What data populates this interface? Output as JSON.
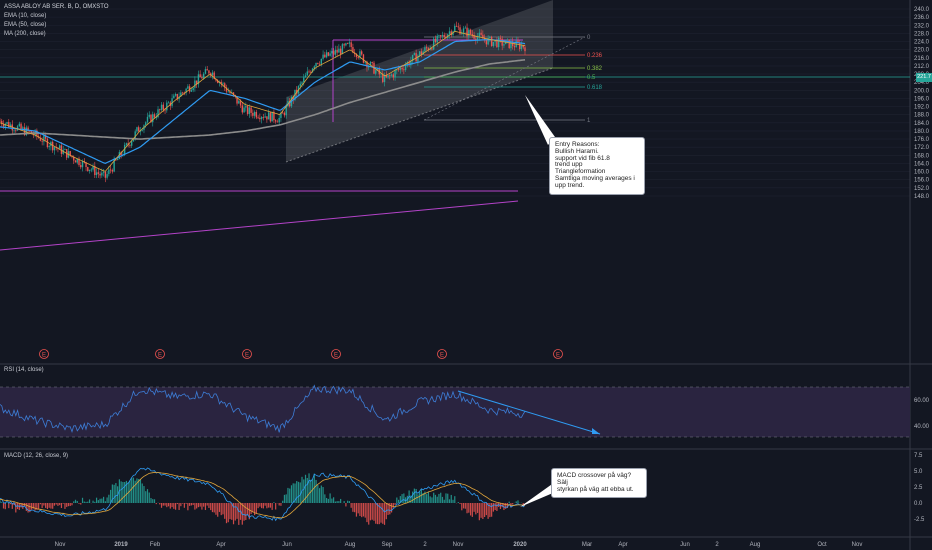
{
  "chart_title": "ASSA ABLOY AB SER. B, D, OMXSTO",
  "legend": [
    "EMA (10, close)",
    "EMA (50, close)",
    "MA (200, close)"
  ],
  "last_price": "221.7",
  "colors": {
    "background": "#131722",
    "ema10": "#e0a53b",
    "ema50": "#2f9bf2",
    "ma200": "#8c8c8c",
    "up": "#26a69a",
    "down": "#ef5350",
    "channel": "#ffffff",
    "rsi_band": "#2a2440"
  },
  "price_axis": {
    "ticks": [
      "240.0",
      "236.0",
      "232.0",
      "228.0",
      "224.0",
      "220.0",
      "216.0",
      "212.0",
      "208.0",
      "204.0",
      "200.0",
      "196.0",
      "192.0",
      "188.0",
      "184.0",
      "180.0",
      "176.0",
      "172.0",
      "168.0",
      "164.0",
      "160.0",
      "156.0",
      "152.0",
      "148.0"
    ]
  },
  "time_axis": {
    "ticks": [
      "Nov",
      "2019",
      "Feb",
      "Apr",
      "Jun",
      "Aug",
      "Sep",
      "2",
      "Nov",
      "2020",
      "Mar",
      "Apr",
      "Jun",
      "2",
      "Aug",
      "Oct",
      "Nov"
    ]
  },
  "earnings_marker": "E",
  "fib_levels": [
    "0",
    "0.236",
    "0.382",
    "0.5",
    "0.618",
    "1"
  ],
  "callout_entry": "Entry Reasons:\nBullish Harami.\nsupport vid fib 61.8\ntrend upp\nTriangleformation\nSamtliga moving averages i\nupp trend.",
  "callout_macd": "MACD crossover på väg? Sälj\nstyrkan på väg att ebba ut.",
  "rsi": {
    "label": "RSI (14, close)",
    "ticks": [
      "80.00",
      "60.00",
      "40.00"
    ]
  },
  "macd": {
    "label": "MACD (12, 26, close, 9)",
    "ticks": [
      "7.5",
      "5.0",
      "2.5",
      "0.0",
      "-2.5"
    ]
  },
  "chart_data": {
    "type": "line",
    "title": "ASSA ABLOY AB SER. B, D, OMXSTO",
    "ylim": [
      146,
      242
    ],
    "series": [
      {
        "name": "close",
        "x": [
          "2018-10",
          "2018-11",
          "2018-12",
          "2019-01",
          "2019-02",
          "2019-03",
          "2019-04",
          "2019-05",
          "2019-06",
          "2019-07",
          "2019-08",
          "2019-09",
          "2019-10",
          "2019-11",
          "2019-12",
          "2020-01"
        ],
        "values": [
          185,
          178,
          168,
          157,
          182,
          196,
          210,
          190,
          186,
          214,
          222,
          205,
          218,
          231,
          224,
          221.7
        ]
      },
      {
        "name": "EMA (10, close)",
        "values": [
          184,
          178,
          168,
          160,
          180,
          195,
          208,
          193,
          188,
          211,
          220,
          207,
          217,
          229,
          225,
          222
        ]
      },
      {
        "name": "EMA (50, close)",
        "values": [
          182,
          180,
          172,
          164,
          172,
          186,
          200,
          196,
          190,
          204,
          214,
          210,
          214,
          224,
          225,
          223
        ]
      },
      {
        "name": "MA (200, close)",
        "values": [
          178,
          179,
          178,
          177,
          176,
          177,
          178,
          180,
          183,
          188,
          194,
          199,
          204,
          209,
          213,
          215
        ]
      }
    ],
    "rsi": {
      "ylim": [
        20,
        90
      ],
      "values": [
        55,
        40,
        30,
        35,
        78,
        68,
        72,
        45,
        30,
        78,
        76,
        40,
        62,
        72,
        52,
        48
      ]
    },
    "macd": {
      "ylim": [
        -4,
        8
      ],
      "values": [
        0.5,
        -1.2,
        -2.0,
        -1.0,
        5.5,
        4.0,
        3.0,
        -2.0,
        -2.5,
        4.5,
        4.0,
        -1.5,
        2.0,
        3.5,
        -0.5,
        -0.3
      ]
    }
  }
}
